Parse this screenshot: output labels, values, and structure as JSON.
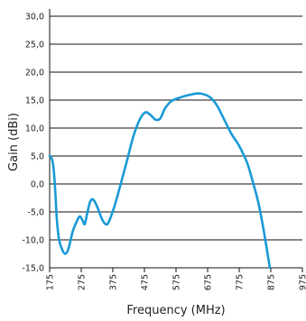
{
  "chart_data": {
    "type": "line",
    "title": "",
    "xlabel": "Frequency (MHz)",
    "ylabel": "Gain (dBi)",
    "xlim": [
      175,
      975
    ],
    "ylim": [
      -15,
      30
    ],
    "grid": "horizontal",
    "y_ticks": [
      {
        "value": 30,
        "label": "30,0"
      },
      {
        "value": 25,
        "label": "25,0"
      },
      {
        "value": 20,
        "label": "20,0"
      },
      {
        "value": 15,
        "label": "15,0"
      },
      {
        "value": 10,
        "label": "10,0"
      },
      {
        "value": 5,
        "label": "5,0"
      },
      {
        "value": 0,
        "label": "0,0"
      },
      {
        "value": -5,
        "label": "-5,0"
      },
      {
        "value": -10,
        "label": "-10,0"
      },
      {
        "value": -15,
        "label": "-15,0"
      }
    ],
    "x_ticks": [
      {
        "value": 175,
        "label": "175"
      },
      {
        "value": 275,
        "label": "275"
      },
      {
        "value": 375,
        "label": "375"
      },
      {
        "value": 475,
        "label": "475"
      },
      {
        "value": 575,
        "label": "575"
      },
      {
        "value": 675,
        "label": "675"
      },
      {
        "value": 775,
        "label": "775"
      },
      {
        "value": 875,
        "label": "875"
      },
      {
        "value": 975,
        "label": "975"
      }
    ],
    "series": [
      {
        "color": "#1a9ad6",
        "points": [
          [
            175,
            5.0
          ],
          [
            182,
            4.5
          ],
          [
            188,
            2.5
          ],
          [
            193,
            -1.5
          ],
          [
            198,
            -6.5
          ],
          [
            205,
            -10.0
          ],
          [
            215,
            -11.8
          ],
          [
            225,
            -12.5
          ],
          [
            235,
            -11.5
          ],
          [
            248,
            -8.5
          ],
          [
            260,
            -6.8
          ],
          [
            270,
            -5.8
          ],
          [
            279,
            -6.5
          ],
          [
            286,
            -7.2
          ],
          [
            293,
            -5.5
          ],
          [
            303,
            -3.2
          ],
          [
            313,
            -2.8
          ],
          [
            325,
            -4.0
          ],
          [
            340,
            -6.2
          ],
          [
            352,
            -7.2
          ],
          [
            362,
            -6.8
          ],
          [
            380,
            -4.0
          ],
          [
            400,
            0.0
          ],
          [
            420,
            4.2
          ],
          [
            440,
            8.5
          ],
          [
            460,
            11.5
          ],
          [
            478,
            12.8
          ],
          [
            495,
            12.3
          ],
          [
            510,
            11.5
          ],
          [
            525,
            11.7
          ],
          [
            540,
            13.5
          ],
          [
            560,
            14.8
          ],
          [
            585,
            15.4
          ],
          [
            615,
            15.9
          ],
          [
            645,
            16.2
          ],
          [
            665,
            16.0
          ],
          [
            685,
            15.4
          ],
          [
            705,
            14.0
          ],
          [
            725,
            11.8
          ],
          [
            750,
            9.0
          ],
          [
            775,
            6.8
          ],
          [
            800,
            3.8
          ],
          [
            820,
            0.0
          ],
          [
            835,
            -3.2
          ],
          [
            850,
            -7.5
          ],
          [
            862,
            -11.5
          ],
          [
            872,
            -15.0
          ]
        ]
      }
    ]
  }
}
